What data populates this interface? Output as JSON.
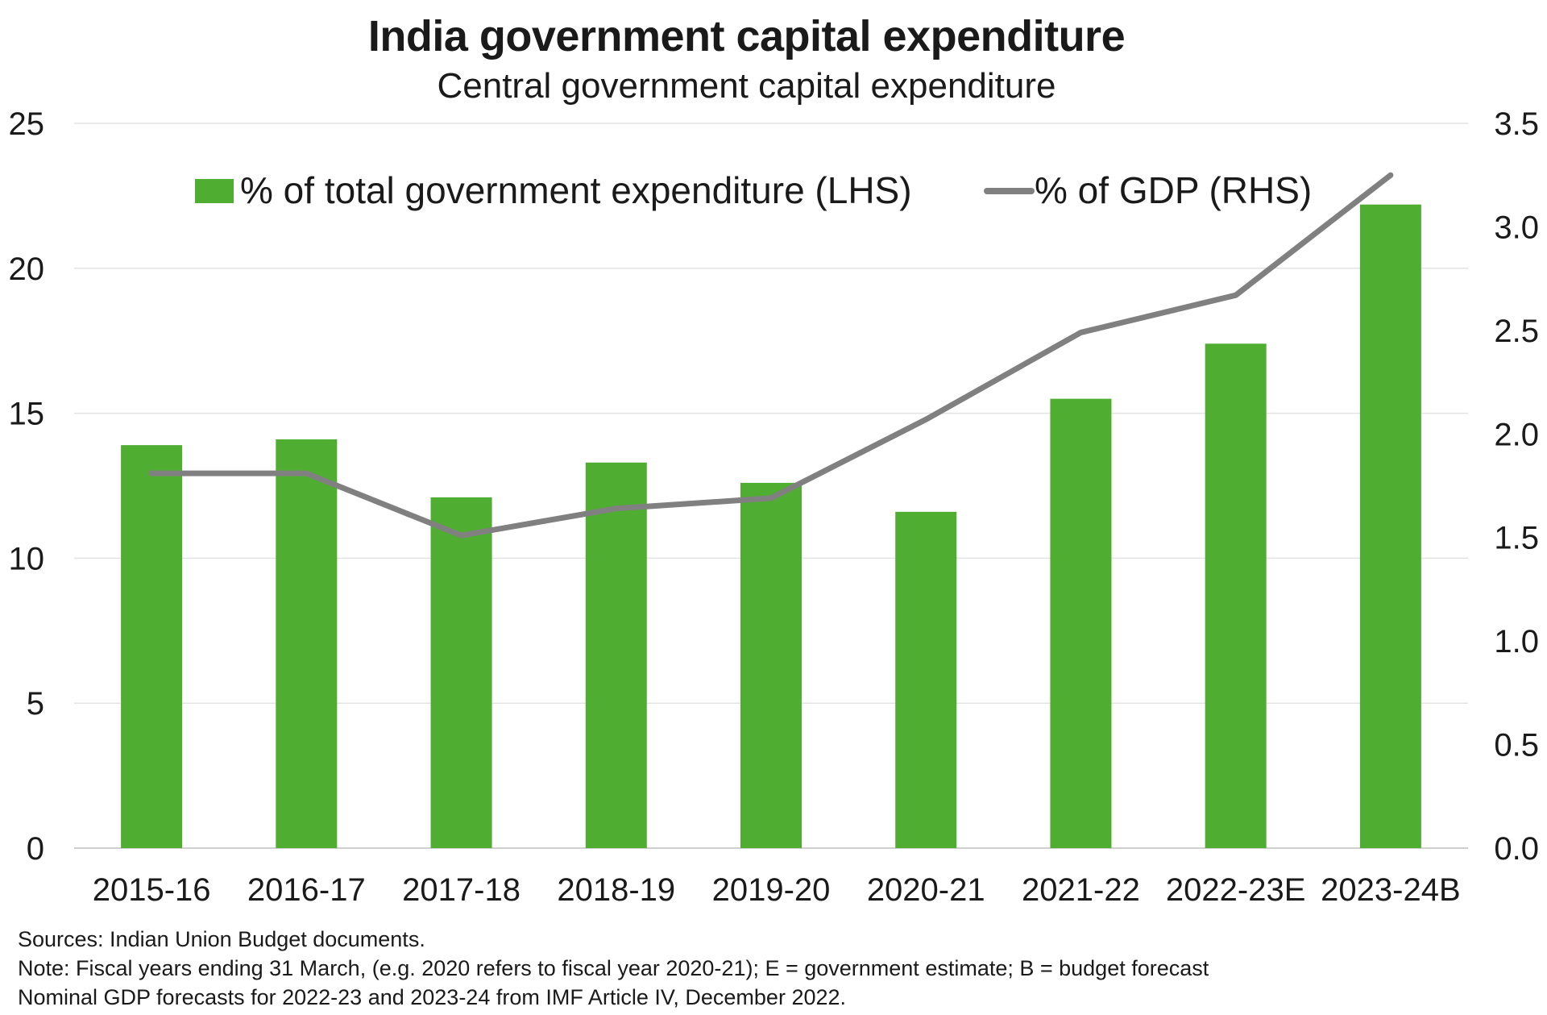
{
  "chart_data": {
    "type": "bar",
    "title": "India government capital expenditure",
    "subtitle": "Central government capital expenditure",
    "categories": [
      "2015-16",
      "2016-17",
      "2017-18",
      "2018-19",
      "2019-20",
      "2020-21",
      "2021-22",
      "2022-23E",
      "2023-24B"
    ],
    "series": [
      {
        "name": "% of total government expenditure (LHS)",
        "type": "bar",
        "axis": "left",
        "color": "#4fad32",
        "values": [
          13.9,
          14.1,
          12.1,
          13.3,
          12.6,
          11.6,
          15.5,
          17.4,
          22.2
        ]
      },
      {
        "name": "% of GDP (RHS)",
        "type": "line",
        "axis": "right",
        "color": "#808080",
        "values": [
          1.81,
          1.81,
          1.51,
          1.64,
          1.69,
          2.07,
          2.49,
          2.67,
          3.25
        ]
      }
    ],
    "y_left": {
      "min": 0,
      "max": 25,
      "ticks": [
        "0",
        "5",
        "10",
        "15",
        "20",
        "25"
      ]
    },
    "y_right": {
      "min": 0,
      "max": 3.5,
      "ticks": [
        "0.0",
        "0.5",
        "1.0",
        "1.5",
        "2.0",
        "2.5",
        "3.0",
        "3.5"
      ]
    },
    "grid": true,
    "legend": "top"
  },
  "footnotes": {
    "sources": "Sources: Indian Union Budget documents.",
    "note": "Note: Fiscal years ending 31 March, (e.g. 2020 refers to fiscal year 2020-21); E = government estimate; B = budget forecast",
    "gdp_note": "Nominal GDP forecasts for 2022-23 and 2023-24 from IMF Article IV, December 2022."
  }
}
